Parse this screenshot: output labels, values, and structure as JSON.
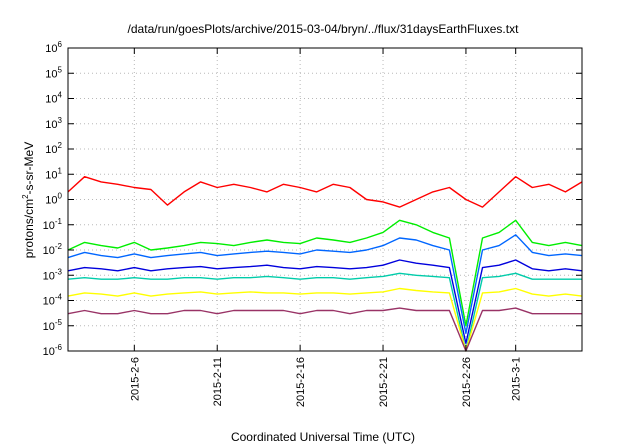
{
  "chart_data": {
    "type": "line",
    "title": "/data/run/goesPlots/archive/2015-03-04/bryn/../flux/31daysEarthFluxes.txt",
    "xlabel": "Coordinated Universal Time (UTC)",
    "ylabel": "protons/cm²-s-sr-MeV",
    "ylabel_parts": {
      "pre": "protons/cm",
      "sup": "2",
      "post": "-s-sr-MeV"
    },
    "yscale": "log",
    "ylim": [
      1e-06,
      1000000.0
    ],
    "y_ticks": [
      {
        "base": "10",
        "exp": "-6",
        "value": 1e-06
      },
      {
        "base": "10",
        "exp": "-5",
        "value": 1e-05
      },
      {
        "base": "10",
        "exp": "-4",
        "value": 0.0001
      },
      {
        "base": "10",
        "exp": "-3",
        "value": 0.001
      },
      {
        "base": "10",
        "exp": "-2",
        "value": 0.01
      },
      {
        "base": "10",
        "exp": "-1",
        "value": 0.1
      },
      {
        "base": "10",
        "exp": "0",
        "value": 1
      },
      {
        "base": "10",
        "exp": "1",
        "value": 10
      },
      {
        "base": "10",
        "exp": "2",
        "value": 100
      },
      {
        "base": "10",
        "exp": "3",
        "value": 1000
      },
      {
        "base": "10",
        "exp": "4",
        "value": 10000
      },
      {
        "base": "10",
        "exp": "5",
        "value": 100000
      },
      {
        "base": "10",
        "exp": "6",
        "value": 1000000
      }
    ],
    "xlim": [
      "2015-02-02",
      "2015-03-05"
    ],
    "x_ticks": [
      "2015-2-6",
      "2015-2-11",
      "2015-2-16",
      "2015-2-21",
      "2015-2-26",
      "2015-3-1"
    ],
    "x_tick_dates": [
      "2015-02-06",
      "2015-02-11",
      "2015-02-16",
      "2015-02-21",
      "2015-02-26",
      "2015-03-01"
    ],
    "grid": true,
    "series": [
      {
        "color": "#ff0000",
        "x": [
          "2015-02-02",
          "2015-02-03",
          "2015-02-04",
          "2015-02-05",
          "2015-02-06",
          "2015-02-07",
          "2015-02-08",
          "2015-02-09",
          "2015-02-10",
          "2015-02-11",
          "2015-02-12",
          "2015-02-13",
          "2015-02-14",
          "2015-02-15",
          "2015-02-16",
          "2015-02-17",
          "2015-02-18",
          "2015-02-19",
          "2015-02-20",
          "2015-02-21",
          "2015-02-22",
          "2015-02-23",
          "2015-02-24",
          "2015-02-25",
          "2015-02-26",
          "2015-02-27",
          "2015-02-28",
          "2015-03-01",
          "2015-03-02",
          "2015-03-03",
          "2015-03-04",
          "2015-03-05"
        ],
        "values": [
          2,
          8,
          5,
          4,
          3,
          2.5,
          0.6,
          2,
          5,
          3,
          4,
          3,
          2,
          4,
          3,
          2,
          4,
          3,
          1,
          0.8,
          0.5,
          1,
          2,
          3,
          1,
          0.5,
          2,
          8,
          3,
          4,
          2,
          5
        ]
      },
      {
        "color": "#00ee00",
        "x": [
          "2015-02-02",
          "2015-02-03",
          "2015-02-04",
          "2015-02-05",
          "2015-02-06",
          "2015-02-07",
          "2015-02-08",
          "2015-02-09",
          "2015-02-10",
          "2015-02-11",
          "2015-02-12",
          "2015-02-13",
          "2015-02-14",
          "2015-02-15",
          "2015-02-16",
          "2015-02-17",
          "2015-02-18",
          "2015-02-19",
          "2015-02-20",
          "2015-02-21",
          "2015-02-22",
          "2015-02-23",
          "2015-02-24",
          "2015-02-25",
          "2015-02-26",
          "2015-02-27",
          "2015-02-28",
          "2015-03-01",
          "2015-03-02",
          "2015-03-03",
          "2015-03-04",
          "2015-03-05"
        ],
        "values": [
          0.01,
          0.02,
          0.015,
          0.012,
          0.02,
          0.01,
          0.012,
          0.015,
          0.02,
          0.018,
          0.015,
          0.02,
          0.025,
          0.02,
          0.018,
          0.03,
          0.025,
          0.02,
          0.03,
          0.05,
          0.15,
          0.1,
          0.05,
          0.03,
          1e-05,
          0.03,
          0.05,
          0.15,
          0.02,
          0.015,
          0.02,
          0.015
        ]
      },
      {
        "color": "#0066ff",
        "x": [
          "2015-02-02",
          "2015-02-03",
          "2015-02-04",
          "2015-02-05",
          "2015-02-06",
          "2015-02-07",
          "2015-02-08",
          "2015-02-09",
          "2015-02-10",
          "2015-02-11",
          "2015-02-12",
          "2015-02-13",
          "2015-02-14",
          "2015-02-15",
          "2015-02-16",
          "2015-02-17",
          "2015-02-18",
          "2015-02-19",
          "2015-02-20",
          "2015-02-21",
          "2015-02-22",
          "2015-02-23",
          "2015-02-24",
          "2015-02-25",
          "2015-02-26",
          "2015-02-27",
          "2015-02-28",
          "2015-03-01",
          "2015-03-02",
          "2015-03-03",
          "2015-03-04",
          "2015-03-05"
        ],
        "values": [
          0.005,
          0.008,
          0.006,
          0.005,
          0.007,
          0.005,
          0.006,
          0.007,
          0.008,
          0.006,
          0.007,
          0.008,
          0.009,
          0.008,
          0.007,
          0.01,
          0.009,
          0.008,
          0.01,
          0.015,
          0.03,
          0.025,
          0.015,
          0.01,
          5e-06,
          0.01,
          0.015,
          0.04,
          0.008,
          0.006,
          0.007,
          0.006
        ]
      },
      {
        "color": "#0000dd",
        "x": [
          "2015-02-02",
          "2015-02-03",
          "2015-02-04",
          "2015-02-05",
          "2015-02-06",
          "2015-02-07",
          "2015-02-08",
          "2015-02-09",
          "2015-02-10",
          "2015-02-11",
          "2015-02-12",
          "2015-02-13",
          "2015-02-14",
          "2015-02-15",
          "2015-02-16",
          "2015-02-17",
          "2015-02-18",
          "2015-02-19",
          "2015-02-20",
          "2015-02-21",
          "2015-02-22",
          "2015-02-23",
          "2015-02-24",
          "2015-02-25",
          "2015-02-26",
          "2015-02-27",
          "2015-02-28",
          "2015-03-01",
          "2015-03-02",
          "2015-03-03",
          "2015-03-04",
          "2015-03-05"
        ],
        "values": [
          0.0015,
          0.002,
          0.0018,
          0.0015,
          0.002,
          0.0015,
          0.0018,
          0.002,
          0.0022,
          0.0018,
          0.002,
          0.0022,
          0.0025,
          0.002,
          0.0018,
          0.0022,
          0.002,
          0.0018,
          0.002,
          0.0025,
          0.004,
          0.003,
          0.0025,
          0.002,
          2e-06,
          0.002,
          0.0025,
          0.004,
          0.0018,
          0.0015,
          0.0018,
          0.0015
        ]
      },
      {
        "color": "#00ccaa",
        "x": [
          "2015-02-02",
          "2015-02-03",
          "2015-02-04",
          "2015-02-05",
          "2015-02-06",
          "2015-02-07",
          "2015-02-08",
          "2015-02-09",
          "2015-02-10",
          "2015-02-11",
          "2015-02-12",
          "2015-02-13",
          "2015-02-14",
          "2015-02-15",
          "2015-02-16",
          "2015-02-17",
          "2015-02-18",
          "2015-02-19",
          "2015-02-20",
          "2015-02-21",
          "2015-02-22",
          "2015-02-23",
          "2015-02-24",
          "2015-02-25",
          "2015-02-26",
          "2015-02-27",
          "2015-02-28",
          "2015-03-01",
          "2015-03-02",
          "2015-03-03",
          "2015-03-04",
          "2015-03-05"
        ],
        "values": [
          0.0007,
          0.0008,
          0.0007,
          0.0007,
          0.0008,
          0.0007,
          0.0007,
          0.0008,
          0.0008,
          0.0007,
          0.0008,
          0.0008,
          0.0009,
          0.0008,
          0.0007,
          0.0008,
          0.0008,
          0.0007,
          0.0008,
          0.0009,
          0.0012,
          0.001,
          0.0009,
          0.0008,
          1e-06,
          0.0008,
          0.0009,
          0.0012,
          0.0007,
          0.0007,
          0.0007,
          0.0007
        ]
      },
      {
        "color": "#ffff00",
        "x": [
          "2015-02-02",
          "2015-02-03",
          "2015-02-04",
          "2015-02-05",
          "2015-02-06",
          "2015-02-07",
          "2015-02-08",
          "2015-02-09",
          "2015-02-10",
          "2015-02-11",
          "2015-02-12",
          "2015-02-13",
          "2015-02-14",
          "2015-02-15",
          "2015-02-16",
          "2015-02-17",
          "2015-02-18",
          "2015-02-19",
          "2015-02-20",
          "2015-02-21",
          "2015-02-22",
          "2015-02-23",
          "2015-02-24",
          "2015-02-25",
          "2015-02-26",
          "2015-02-27",
          "2015-02-28",
          "2015-03-01",
          "2015-03-02",
          "2015-03-03",
          "2015-03-04",
          "2015-03-05"
        ],
        "values": [
          0.00015,
          0.0002,
          0.00018,
          0.00015,
          0.0002,
          0.00015,
          0.00018,
          0.0002,
          0.00022,
          0.00018,
          0.0002,
          0.00022,
          0.0002,
          0.0002,
          0.00018,
          0.0002,
          0.0002,
          0.00018,
          0.0002,
          0.00022,
          0.0003,
          0.00025,
          0.00022,
          0.0002,
          8e-07,
          0.0002,
          0.00022,
          0.0003,
          0.00018,
          0.00015,
          0.00018,
          0.00015
        ]
      },
      {
        "color": "#993366",
        "x": [
          "2015-02-02",
          "2015-02-03",
          "2015-02-04",
          "2015-02-05",
          "2015-02-06",
          "2015-02-07",
          "2015-02-08",
          "2015-02-09",
          "2015-02-10",
          "2015-02-11",
          "2015-02-12",
          "2015-02-13",
          "2015-02-14",
          "2015-02-15",
          "2015-02-16",
          "2015-02-17",
          "2015-02-18",
          "2015-02-19",
          "2015-02-20",
          "2015-02-21",
          "2015-02-22",
          "2015-02-23",
          "2015-02-24",
          "2015-02-25",
          "2015-02-26",
          "2015-02-27",
          "2015-02-28",
          "2015-03-01",
          "2015-03-02",
          "2015-03-03",
          "2015-03-04",
          "2015-03-05"
        ],
        "values": [
          3e-05,
          4e-05,
          3e-05,
          3e-05,
          4e-05,
          3e-05,
          3e-05,
          4e-05,
          4e-05,
          3e-05,
          4e-05,
          4e-05,
          4e-05,
          4e-05,
          3e-05,
          4e-05,
          4e-05,
          3e-05,
          4e-05,
          4e-05,
          5e-05,
          4e-05,
          4e-05,
          4e-05,
          5e-07,
          4e-05,
          4e-05,
          5e-05,
          3e-05,
          3e-05,
          3e-05,
          3e-05
        ]
      }
    ]
  }
}
